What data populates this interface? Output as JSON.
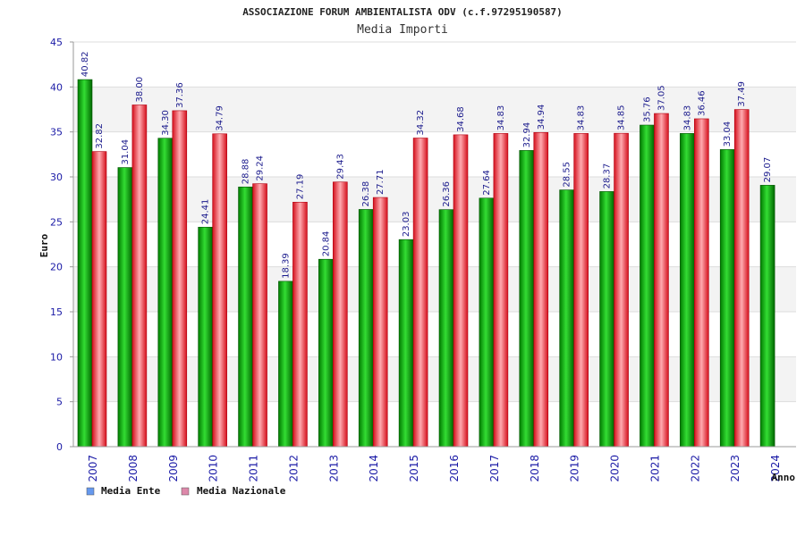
{
  "chart_data": {
    "type": "bar",
    "title": "ASSOCIAZIONE FORUM AMBIENTALISTA ODV (c.f.97295190587)",
    "subtitle": "Media Importi",
    "xlabel": "Anno",
    "ylabel": "Euro",
    "ylim": [
      0,
      45
    ],
    "yticks": [
      0,
      5,
      10,
      15,
      20,
      25,
      30,
      35,
      40,
      45
    ],
    "grid": true,
    "legend_position": "bottom-left",
    "categories": [
      "2007",
      "2008",
      "2009",
      "2010",
      "2011",
      "2012",
      "2013",
      "2014",
      "2015",
      "2016",
      "2017",
      "2018",
      "2019",
      "2020",
      "2021",
      "2022",
      "2023",
      "2024"
    ],
    "series": [
      {
        "name": "Media Ente",
        "color": "#00a800",
        "legend_color": "#6699ee",
        "values": [
          40.82,
          31.04,
          34.3,
          24.41,
          28.88,
          18.39,
          20.84,
          26.38,
          23.03,
          26.36,
          27.64,
          32.94,
          28.55,
          28.37,
          35.76,
          34.83,
          33.04,
          29.07
        ],
        "labels": [
          "40.82",
          "31.04",
          "34.30",
          "24.41",
          "28.88",
          "18.39",
          "20.84",
          "26.38",
          "23.03",
          "26.36",
          "27.64",
          "32.94",
          "28.55",
          "28.37",
          "35.76",
          "34.83",
          "33.04",
          "29.07"
        ]
      },
      {
        "name": "Media Nazionale",
        "color": "#e8202a",
        "legend_color": "#dd88aa",
        "values": [
          32.82,
          38.0,
          37.36,
          34.79,
          29.24,
          27.19,
          29.43,
          27.71,
          34.32,
          34.68,
          34.83,
          34.94,
          34.83,
          34.85,
          37.05,
          36.46,
          37.49,
          null
        ],
        "labels": [
          "32.82",
          "38.00",
          "37.36",
          "34.79",
          "29.24",
          "27.19",
          "29.43",
          "27.71",
          "34.32",
          "34.68",
          "34.83",
          "34.94",
          "34.83",
          "34.85",
          "37.05",
          "36.46",
          "37.49",
          null
        ]
      }
    ]
  }
}
